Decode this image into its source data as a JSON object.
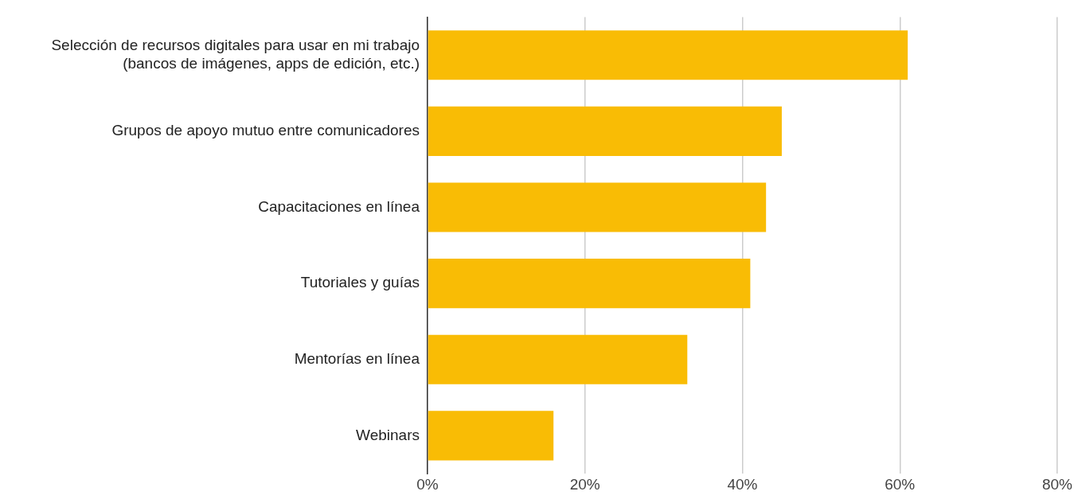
{
  "chart_data": {
    "type": "bar",
    "orientation": "horizontal",
    "categories": [
      "Selección de recursos digitales para usar en mi trabajo (bancos de imágenes, apps de edición, etc.)",
      "Grupos de apoyo mutuo entre comunicadores",
      "Capacitaciones en línea",
      "Tutoriales y guías",
      "Mentorías en línea",
      "Webinars"
    ],
    "values": [
      61,
      45,
      43,
      41,
      33,
      16
    ],
    "color": "#f9bc05",
    "xlim": [
      0,
      80
    ],
    "xticks": [
      {
        "value": 0,
        "label": "0%"
      },
      {
        "value": 20,
        "label": "20%"
      },
      {
        "value": 40,
        "label": "40%"
      },
      {
        "value": 60,
        "label": "60%"
      },
      {
        "value": 80,
        "label": "80%"
      }
    ],
    "grid": "x",
    "legend": false
  }
}
